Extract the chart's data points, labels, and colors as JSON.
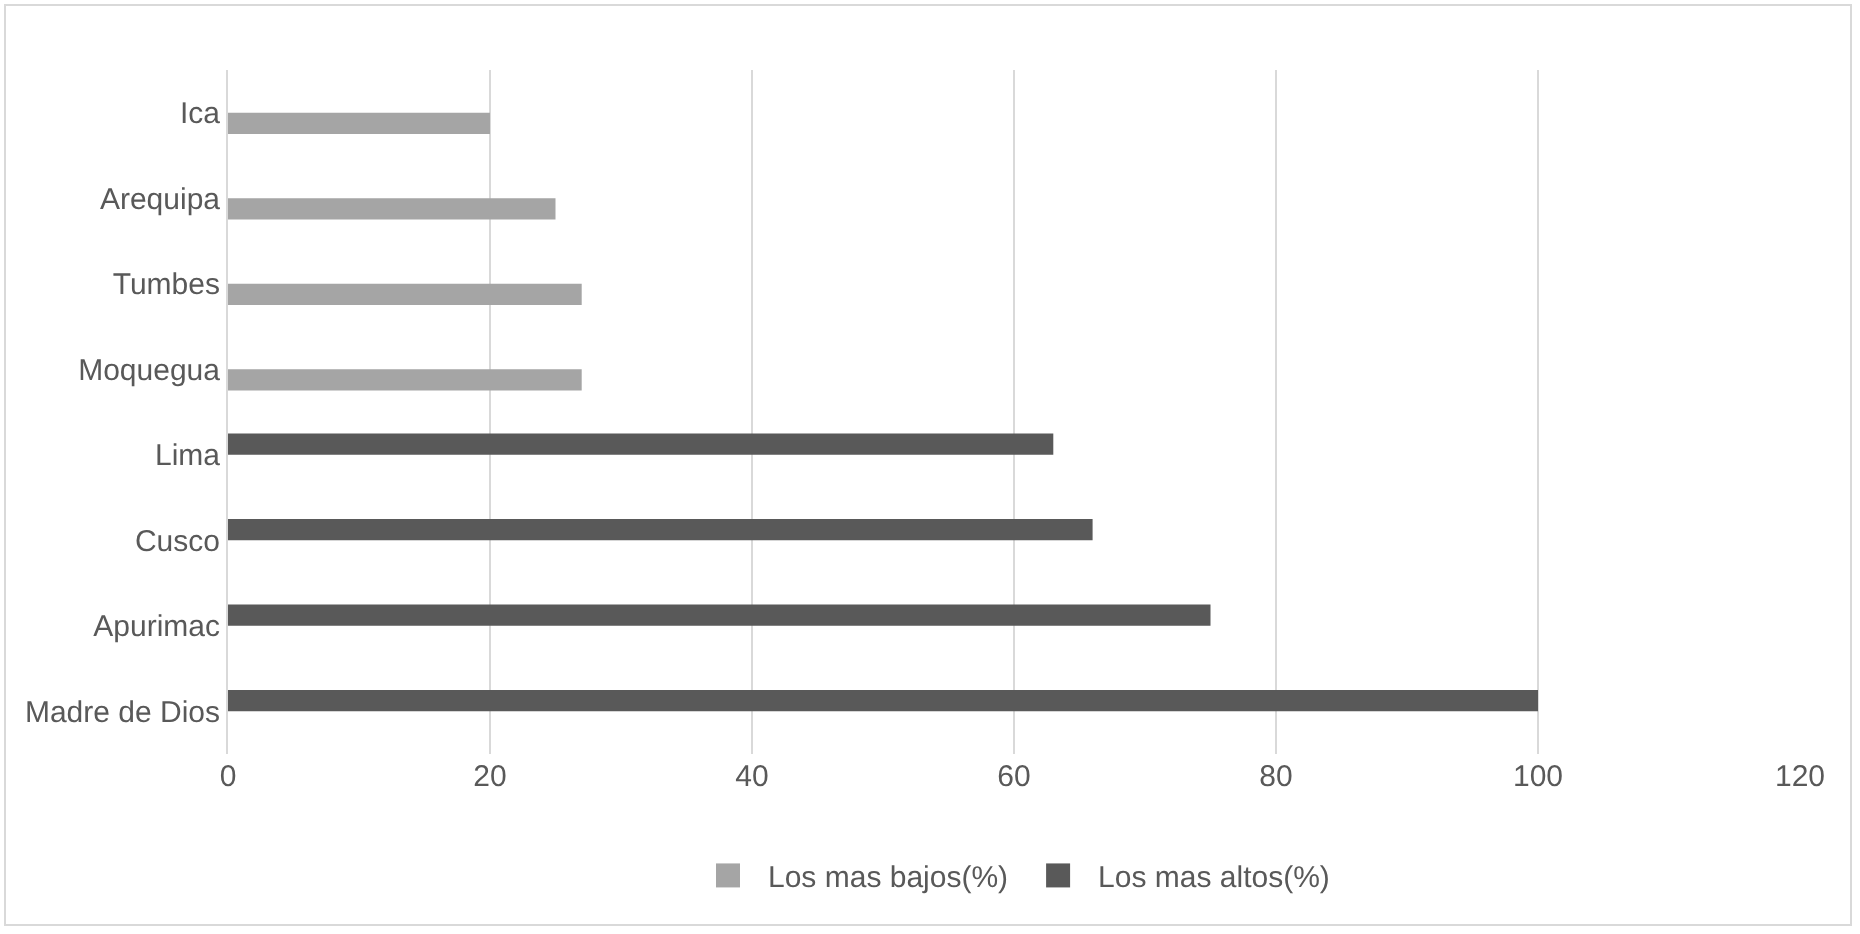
{
  "chart_data": {
    "type": "bar",
    "orientation": "horizontal",
    "categories": [
      "Ica",
      "Arequipa",
      "Tumbes",
      "Moquegua",
      "Lima",
      "Cusco",
      "Apurimac",
      "Madre de Dios"
    ],
    "series": [
      {
        "name": "Los mas bajos(%)",
        "color": "#a5a5a5",
        "values": [
          20,
          25,
          27,
          27,
          null,
          null,
          null,
          null
        ]
      },
      {
        "name": "Los mas altos(%)",
        "color": "#595959",
        "values": [
          null,
          null,
          null,
          null,
          63,
          66,
          75,
          100
        ]
      }
    ],
    "xlim": [
      0,
      120
    ],
    "xticks": [
      0,
      20,
      40,
      60,
      80,
      100,
      120
    ],
    "grid": "x",
    "legend": "bottom"
  }
}
